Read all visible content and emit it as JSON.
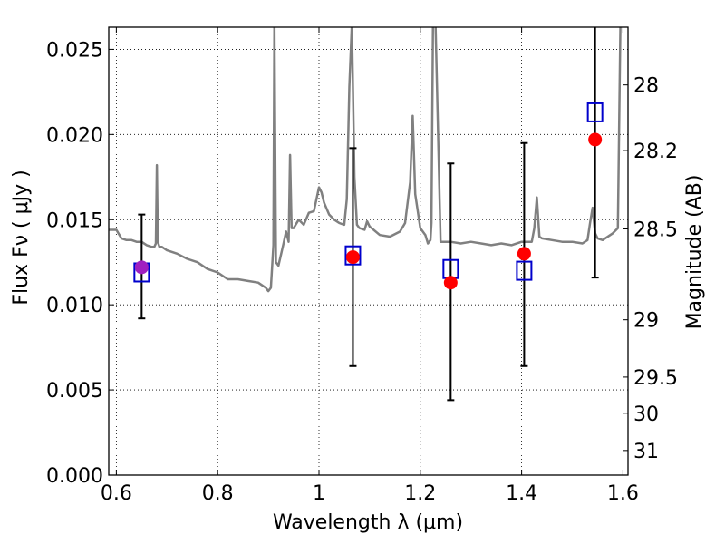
{
  "chart_data": {
    "type": "scatter",
    "title": "",
    "xlabel": "Wavelength  λ (μm)",
    "ylabel": "Flux  Fν  ( μJy )",
    "y2label": "Magnitude (AB)",
    "xlim": [
      0.585,
      1.61
    ],
    "ylim": [
      0.0,
      0.0263
    ],
    "grid": true,
    "x_ticks": [
      0.6,
      0.8,
      1.0,
      1.2,
      1.4,
      1.6
    ],
    "x_tick_labels": [
      "0.6",
      "0.8",
      "1",
      "1.2",
      "1.4",
      "1.6"
    ],
    "y_ticks": [
      0.0,
      0.005,
      0.01,
      0.015,
      0.02,
      0.025
    ],
    "y_tick_labels": [
      "0.000",
      "0.005",
      "0.010",
      "0.015",
      "0.020",
      "0.025"
    ],
    "y2_ticks": [
      28,
      28.2,
      28.5,
      29,
      29.5,
      30,
      31
    ],
    "y2_tick_labels": [
      "28",
      "28.2",
      "28.5",
      "29",
      "29.5",
      "30",
      "31"
    ],
    "colors": {
      "spectrum": "#808080",
      "observed": "#ff0000",
      "model": "#0000cc",
      "overlap": "#a020c0",
      "errorbar": "#000000"
    },
    "spectrum": {
      "x": [
        0.585,
        0.6,
        0.61,
        0.62,
        0.63,
        0.64,
        0.65,
        0.66,
        0.67,
        0.675,
        0.678,
        0.68,
        0.682,
        0.685,
        0.69,
        0.7,
        0.72,
        0.74,
        0.76,
        0.78,
        0.8,
        0.82,
        0.84,
        0.86,
        0.88,
        0.895,
        0.9,
        0.905,
        0.91,
        0.912,
        0.915,
        0.92,
        0.93,
        0.935,
        0.94,
        0.943,
        0.946,
        0.95,
        0.96,
        0.97,
        0.98,
        0.99,
        1.0,
        1.005,
        1.01,
        1.02,
        1.03,
        1.04,
        1.05,
        1.055,
        1.06,
        1.065,
        1.07,
        1.075,
        1.08,
        1.09,
        1.095,
        1.1,
        1.12,
        1.14,
        1.16,
        1.17,
        1.18,
        1.185,
        1.19,
        1.2,
        1.21,
        1.215,
        1.22,
        1.222,
        1.225,
        1.23,
        1.24,
        1.26,
        1.28,
        1.3,
        1.32,
        1.34,
        1.36,
        1.38,
        1.4,
        1.42,
        1.425,
        1.43,
        1.435,
        1.44,
        1.46,
        1.48,
        1.5,
        1.52,
        1.53,
        1.535,
        1.54,
        1.545,
        1.55,
        1.56,
        1.58,
        1.59,
        1.595,
        1.6
      ],
      "y": [
        0.0144,
        0.0144,
        0.0139,
        0.0138,
        0.0138,
        0.0137,
        0.0137,
        0.0135,
        0.0134,
        0.0134,
        0.0136,
        0.0182,
        0.0137,
        0.0134,
        0.0134,
        0.0132,
        0.013,
        0.0127,
        0.0125,
        0.0121,
        0.0119,
        0.0115,
        0.0115,
        0.0114,
        0.0113,
        0.011,
        0.0108,
        0.011,
        0.0135,
        0.0265,
        0.0125,
        0.0123,
        0.0136,
        0.0143,
        0.0137,
        0.0188,
        0.0145,
        0.0145,
        0.015,
        0.0147,
        0.0154,
        0.0155,
        0.0169,
        0.0166,
        0.016,
        0.0153,
        0.015,
        0.0148,
        0.0147,
        0.0162,
        0.0228,
        0.0265,
        0.0175,
        0.0147,
        0.0145,
        0.0144,
        0.0149,
        0.0146,
        0.0141,
        0.014,
        0.0143,
        0.0148,
        0.0172,
        0.0211,
        0.0165,
        0.0145,
        0.0141,
        0.0136,
        0.0138,
        0.0148,
        0.0265,
        0.0265,
        0.0137,
        0.0137,
        0.0136,
        0.0137,
        0.0136,
        0.0135,
        0.0136,
        0.0135,
        0.0137,
        0.0137,
        0.0145,
        0.0163,
        0.014,
        0.0139,
        0.0138,
        0.0137,
        0.0137,
        0.0136,
        0.0138,
        0.0148,
        0.0157,
        0.0142,
        0.0139,
        0.0138,
        0.0142,
        0.0145,
        0.0265,
        0.0265
      ]
    },
    "observed": [
      {
        "x": 0.65,
        "y": 0.0122,
        "yerr_low": 0.0092,
        "yerr_high": 0.0153
      },
      {
        "x": 1.067,
        "y": 0.0128,
        "yerr_low": 0.0064,
        "yerr_high": 0.0192
      },
      {
        "x": 1.26,
        "y": 0.0113,
        "yerr_low": 0.0044,
        "yerr_high": 0.0183
      },
      {
        "x": 1.405,
        "y": 0.013,
        "yerr_low": 0.0064,
        "yerr_high": 0.0195
      },
      {
        "x": 1.545,
        "y": 0.0197,
        "yerr_low": 0.0116,
        "yerr_high": 0.0263
      }
    ],
    "model": [
      {
        "x": 0.65,
        "y": 0.0119
      },
      {
        "x": 1.067,
        "y": 0.0129
      },
      {
        "x": 1.26,
        "y": 0.0121
      },
      {
        "x": 1.405,
        "y": 0.012
      },
      {
        "x": 1.545,
        "y": 0.0213
      }
    ]
  }
}
